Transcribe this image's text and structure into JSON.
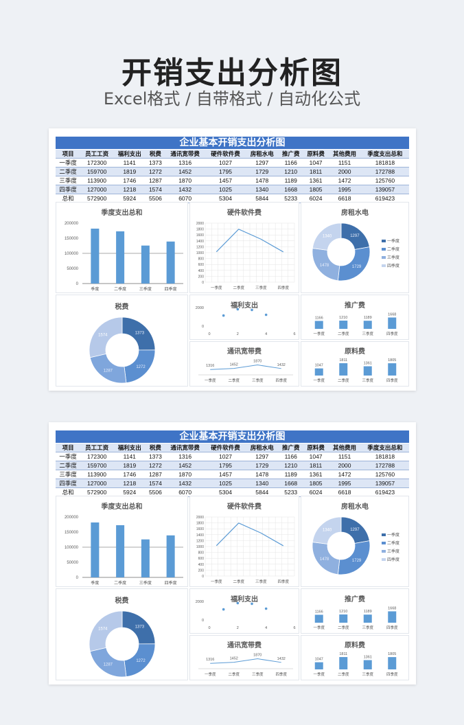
{
  "hero": {
    "title": "开销支出分析图",
    "subtitle": "Excel格式 / 自带格式 / 自动化公式"
  },
  "sheet": {
    "title": "企业基本开销支出分析图",
    "headers": [
      "项目",
      "员工工资",
      "福利支出",
      "税费",
      "通讯宽带费",
      "硬件软件费",
      "房租水电",
      "推广费",
      "原料费",
      "其他费用",
      "季度支出总和"
    ],
    "rows": [
      [
        "一季度",
        "172300",
        "1141",
        "1373",
        "1316",
        "1027",
        "1297",
        "1166",
        "1047",
        "1151",
        "181818"
      ],
      [
        "二季度",
        "159700",
        "1819",
        "1272",
        "1452",
        "1795",
        "1729",
        "1210",
        "1811",
        "2000",
        "172788"
      ],
      [
        "三季度",
        "113900",
        "1746",
        "1287",
        "1870",
        "1457",
        "1478",
        "1189",
        "1361",
        "1472",
        "125760"
      ],
      [
        "四季度",
        "127000",
        "1218",
        "1574",
        "1432",
        "1025",
        "1340",
        "1668",
        "1805",
        "1995",
        "139057"
      ],
      [
        "总和",
        "572900",
        "5924",
        "5506",
        "6070",
        "5304",
        "5844",
        "5233",
        "6024",
        "6618",
        "619423"
      ]
    ]
  },
  "chart_data": [
    {
      "id": "quarter_total",
      "type": "bar",
      "title": "季度支出总和",
      "categories": [
        "季度",
        "二季度",
        "三季度",
        "四季度"
      ],
      "values": [
        181818,
        172788,
        125760,
        139057
      ],
      "ylim": [
        0,
        200000
      ],
      "yticks": [
        "200000",
        "150000",
        "100000",
        "50000",
        "0"
      ],
      "color": "#5b9bd5"
    },
    {
      "id": "hardware",
      "type": "line",
      "title": "硬件软件费",
      "categories": [
        "一季度",
        "二季度",
        "三季度",
        "四季度"
      ],
      "values": [
        1027,
        1795,
        1457,
        1025
      ],
      "ylim": [
        0,
        2000
      ],
      "yticks": [
        "2000",
        "1800",
        "1600",
        "1400",
        "1200",
        "1000",
        "800",
        "600",
        "400",
        "200",
        "0"
      ],
      "color": "#5b9bd5"
    },
    {
      "id": "rent",
      "type": "pie",
      "title": "房租水电",
      "categories": [
        "一季度",
        "二季度",
        "三季度",
        "四季度"
      ],
      "values": [
        1297,
        1729,
        1478,
        1340
      ],
      "labels": [
        "1297",
        "1729",
        "1478",
        "1340"
      ],
      "legend": "right",
      "colors": [
        "#3e6faa",
        "#5b8fd0",
        "#8fb0df",
        "#c4d4ee"
      ]
    },
    {
      "id": "tax",
      "type": "pie",
      "title": "税费",
      "categories": [
        "一季度",
        "二季度",
        "三季度",
        "四季度"
      ],
      "values": [
        1373,
        1272,
        1287,
        1574
      ],
      "labels": [
        "1373",
        "1272",
        "1287",
        "1574"
      ],
      "colors": [
        "#3e6faa",
        "#5b8fd0",
        "#7fa6dc",
        "#b6c9e9"
      ]
    },
    {
      "id": "welfare",
      "type": "scatter",
      "title": "福利支出",
      "x": [
        1,
        2,
        3,
        4
      ],
      "values": [
        1141,
        1819,
        1746,
        1218
      ],
      "xlim": [
        0,
        6
      ],
      "xticks": [
        "0",
        "2",
        "4",
        "6"
      ],
      "ylim": [
        0,
        2000
      ],
      "yticks": [
        "2000",
        "0"
      ],
      "color": "#5b9bd5"
    },
    {
      "id": "promo",
      "type": "bar",
      "title": "推广费",
      "categories": [
        "一季度",
        "二季度",
        "三季度",
        "四季度"
      ],
      "values": [
        1166,
        1210,
        1189,
        1668
      ],
      "labels": [
        "1166",
        "1210",
        "1189",
        "1668"
      ],
      "color": "#5b9bd5"
    },
    {
      "id": "telecom",
      "type": "line",
      "title": "通讯宽带费",
      "categories": [
        "一季度",
        "二季度",
        "三季度",
        "四季度"
      ],
      "values": [
        1316,
        1452,
        1870,
        1432
      ],
      "labels": [
        "1316",
        "1452",
        "1870",
        "1432"
      ],
      "color": "#5b9bd5"
    },
    {
      "id": "material",
      "type": "bar",
      "title": "原料费",
      "categories": [
        "一季度",
        "二季度",
        "三季度",
        "四季度"
      ],
      "values": [
        1047,
        1811,
        1361,
        1805
      ],
      "labels": [
        "1047",
        "1811",
        "1361",
        "1805"
      ],
      "color": "#5b9bd5"
    }
  ]
}
